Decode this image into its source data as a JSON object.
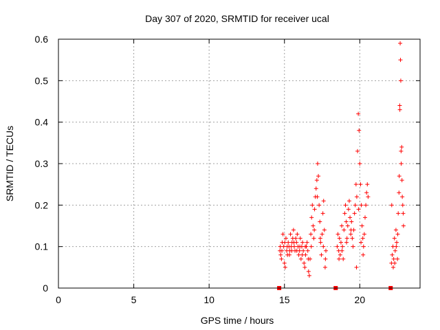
{
  "chart_data": {
    "type": "scatter",
    "title": "Day 307 of 2020, SRMTID for receiver ucal",
    "xlabel": "GPS time / hours",
    "ylabel": "SRMTID / TECUs",
    "xlim": [
      0,
      24
    ],
    "ylim": [
      0,
      0.6
    ],
    "xticks": [
      0,
      5,
      10,
      15,
      20
    ],
    "yticks": [
      0,
      0.1,
      0.2,
      0.3,
      0.4,
      0.5,
      0.6
    ],
    "ytick_labels": [
      "0",
      "0.1",
      "0.2",
      "0.3",
      "0.4",
      "0.5",
      "0.6"
    ],
    "grid": true,
    "marker": "+",
    "colors": {
      "series": "#ff0000",
      "axis": "#000000",
      "grid": "#a0a0a0"
    },
    "gap_markers_x": [
      14.65,
      18.4,
      22.05
    ],
    "points": [
      [
        14.7,
        0.09
      ],
      [
        14.75,
        0.08
      ],
      [
        14.8,
        0.07
      ],
      [
        14.85,
        0.11
      ],
      [
        14.9,
        0.13
      ],
      [
        14.95,
        0.1
      ],
      [
        15.0,
        0.06
      ],
      [
        15.05,
        0.05
      ],
      [
        15.1,
        0.12
      ],
      [
        15.15,
        0.09
      ],
      [
        15.2,
        0.08
      ],
      [
        15.25,
        0.11
      ],
      [
        15.3,
        0.1
      ],
      [
        15.35,
        0.09
      ],
      [
        15.4,
        0.13
      ],
      [
        15.45,
        0.1
      ],
      [
        15.5,
        0.11
      ],
      [
        15.55,
        0.12
      ],
      [
        15.6,
        0.14
      ],
      [
        15.65,
        0.1
      ],
      [
        15.7,
        0.09
      ],
      [
        15.75,
        0.12
      ],
      [
        15.8,
        0.11
      ],
      [
        15.85,
        0.13
      ],
      [
        15.9,
        0.1
      ],
      [
        15.95,
        0.08
      ],
      [
        16.0,
        0.09
      ],
      [
        16.05,
        0.12
      ],
      [
        16.1,
        0.07
      ],
      [
        16.15,
        0.1
      ],
      [
        16.2,
        0.11
      ],
      [
        16.25,
        0.09
      ],
      [
        16.3,
        0.06
      ],
      [
        16.35,
        0.05
      ],
      [
        16.4,
        0.08
      ],
      [
        16.45,
        0.1
      ],
      [
        16.5,
        0.11
      ],
      [
        16.55,
        0.09
      ],
      [
        16.6,
        0.04
      ],
      [
        16.65,
        0.03
      ],
      [
        16.7,
        0.07
      ],
      [
        16.75,
        0.13
      ],
      [
        16.8,
        0.17
      ],
      [
        16.85,
        0.2
      ],
      [
        16.9,
        0.15
      ],
      [
        16.95,
        0.12
      ],
      [
        17.0,
        0.19
      ],
      [
        17.05,
        0.22
      ],
      [
        17.1,
        0.24
      ],
      [
        17.15,
        0.26
      ],
      [
        17.2,
        0.3
      ],
      [
        17.25,
        0.27
      ],
      [
        17.3,
        0.2
      ],
      [
        17.35,
        0.16
      ],
      [
        17.4,
        0.11
      ],
      [
        17.45,
        0.08
      ],
      [
        17.5,
        0.13
      ],
      [
        17.55,
        0.18
      ],
      [
        17.6,
        0.21
      ],
      [
        17.65,
        0.14
      ],
      [
        17.7,
        0.05
      ],
      [
        17.75,
        0.09
      ],
      [
        14.72,
        0.1
      ],
      [
        14.83,
        0.09
      ],
      [
        15.02,
        0.11
      ],
      [
        15.18,
        0.1
      ],
      [
        15.33,
        0.08
      ],
      [
        15.48,
        0.09
      ],
      [
        15.63,
        0.11
      ],
      [
        15.82,
        0.09
      ],
      [
        16.02,
        0.1
      ],
      [
        16.18,
        0.08
      ],
      [
        16.38,
        0.1
      ],
      [
        16.58,
        0.07
      ],
      [
        16.78,
        0.1
      ],
      [
        16.98,
        0.14
      ],
      [
        17.18,
        0.22
      ],
      [
        17.38,
        0.12
      ],
      [
        17.58,
        0.1
      ],
      [
        17.72,
        0.07
      ],
      [
        18.5,
        0.1
      ],
      [
        18.55,
        0.13
      ],
      [
        18.6,
        0.09
      ],
      [
        18.65,
        0.12
      ],
      [
        18.7,
        0.08
      ],
      [
        18.75,
        0.11
      ],
      [
        18.8,
        0.15
      ],
      [
        18.85,
        0.1
      ],
      [
        18.9,
        0.07
      ],
      [
        18.95,
        0.14
      ],
      [
        19.0,
        0.18
      ],
      [
        19.05,
        0.2
      ],
      [
        19.1,
        0.16
      ],
      [
        19.15,
        0.12
      ],
      [
        19.2,
        0.15
      ],
      [
        19.25,
        0.19
      ],
      [
        19.3,
        0.21
      ],
      [
        19.35,
        0.17
      ],
      [
        19.4,
        0.13
      ],
      [
        19.45,
        0.16
      ],
      [
        19.5,
        0.12
      ],
      [
        19.55,
        0.1
      ],
      [
        19.6,
        0.14
      ],
      [
        19.65,
        0.18
      ],
      [
        19.7,
        0.2
      ],
      [
        19.75,
        0.25
      ],
      [
        19.8,
        0.22
      ],
      [
        19.85,
        0.33
      ],
      [
        19.9,
        0.42
      ],
      [
        19.95,
        0.38
      ],
      [
        20.0,
        0.3
      ],
      [
        20.05,
        0.25
      ],
      [
        20.1,
        0.2
      ],
      [
        20.15,
        0.15
      ],
      [
        20.2,
        0.12
      ],
      [
        20.25,
        0.1
      ],
      [
        20.3,
        0.13
      ],
      [
        20.35,
        0.17
      ],
      [
        20.4,
        0.2
      ],
      [
        20.45,
        0.23
      ],
      [
        20.5,
        0.25
      ],
      [
        20.55,
        0.22
      ],
      [
        19.78,
        0.05
      ],
      [
        19.92,
        0.19
      ],
      [
        20.08,
        0.11
      ],
      [
        20.22,
        0.08
      ],
      [
        18.62,
        0.07
      ],
      [
        18.82,
        0.09
      ],
      [
        19.12,
        0.11
      ],
      [
        19.42,
        0.14
      ],
      [
        22.1,
        0.06
      ],
      [
        22.15,
        0.08
      ],
      [
        22.2,
        0.1
      ],
      [
        22.25,
        0.07
      ],
      [
        22.3,
        0.12
      ],
      [
        22.35,
        0.09
      ],
      [
        22.4,
        0.14
      ],
      [
        22.45,
        0.11
      ],
      [
        22.5,
        0.07
      ],
      [
        22.55,
        0.18
      ],
      [
        22.6,
        0.23
      ],
      [
        22.65,
        0.44
      ],
      [
        22.68,
        0.59
      ],
      [
        22.7,
        0.55
      ],
      [
        22.72,
        0.5
      ],
      [
        22.75,
        0.3
      ],
      [
        22.78,
        0.34
      ],
      [
        22.8,
        0.26
      ],
      [
        22.85,
        0.2
      ],
      [
        22.9,
        0.15
      ],
      [
        22.12,
        0.2
      ],
      [
        22.22,
        0.05
      ],
      [
        22.32,
        0.06
      ],
      [
        22.42,
        0.1
      ],
      [
        22.52,
        0.13
      ],
      [
        22.62,
        0.27
      ],
      [
        22.66,
        0.43
      ],
      [
        22.74,
        0.33
      ],
      [
        22.82,
        0.22
      ],
      [
        22.88,
        0.18
      ]
    ]
  }
}
